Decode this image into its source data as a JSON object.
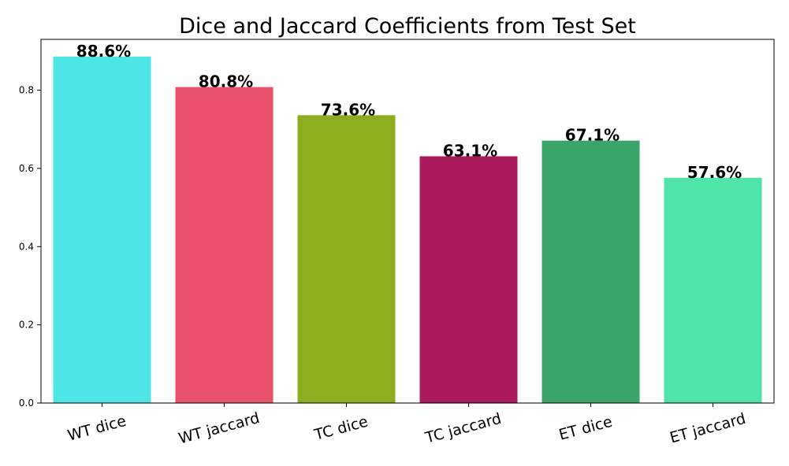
{
  "chart_data": {
    "type": "bar",
    "title": "Dice and Jaccard Coefficients from Test Set",
    "xlabel": "",
    "ylabel": "",
    "categories": [
      "WT dice",
      "WT jaccard",
      "TC dice",
      "TC jaccard",
      "ET dice",
      "ET jaccard"
    ],
    "values": [
      0.886,
      0.808,
      0.736,
      0.631,
      0.671,
      0.576
    ],
    "value_labels": [
      "88.6%",
      "80.8%",
      "73.6%",
      "63.1%",
      "67.1%",
      "57.6%"
    ],
    "colors": [
      "#4de6e6",
      "#e8506c",
      "#8aae1e",
      "#ab1a5a",
      "#3aa569",
      "#4de6a8"
    ],
    "ylim": [
      0,
      0.93
    ],
    "yticks": [
      0.0,
      0.2,
      0.4,
      0.6,
      0.8
    ],
    "ytick_labels": [
      "0.0",
      "0.2",
      "0.4",
      "0.6",
      "0.8"
    ],
    "grid": false,
    "legend": "none"
  }
}
